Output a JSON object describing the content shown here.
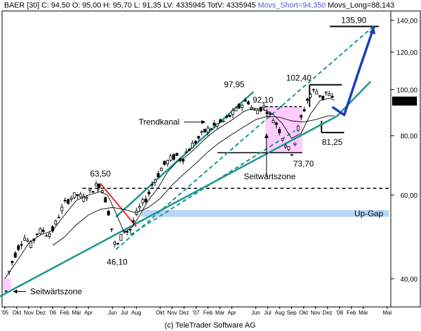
{
  "header": {
    "symbol": "BAER [30]",
    "close": "C: 94,50",
    "open": "O: 95,00",
    "high": "H: 95,70",
    "low": "L: 91,35",
    "volume": "LV: 4335945",
    "total_volume": "TotV: 4335945",
    "movs_short": "Movs_Short=94,350",
    "movs_long": "Movs_Long=88,143",
    "movs_short_color": "#5b5bd6",
    "text_color": "#000000"
  },
  "footer": {
    "copyright": "(c) TeleTrader Software AG"
  },
  "annotations": {
    "trend_channel": "Trendkanal",
    "sideways_zone_mid": "Seitwärtszone",
    "sideways_zone_low": "Seitwärtszone",
    "up_gap": "Up-Gap",
    "last_price": "94,50"
  },
  "chart_data": {
    "type": "candlestick",
    "title": "",
    "y_scale": "log",
    "ylim": [
      35,
      146
    ],
    "y_ticks": [
      {
        "value": 40,
        "label": "40,00"
      },
      {
        "value": 60,
        "label": "60,00"
      },
      {
        "value": 80,
        "label": "80,00"
      },
      {
        "value": 100,
        "label": "100,00"
      },
      {
        "value": 120,
        "label": "120,00"
      },
      {
        "value": 140,
        "label": "140,00"
      }
    ],
    "x_ticks": [
      {
        "m": 0,
        "label": "'05"
      },
      {
        "m": 1,
        "label": "Okt"
      },
      {
        "m": 2,
        "label": "Nov"
      },
      {
        "m": 3,
        "label": "Dez"
      },
      {
        "m": 4,
        "label": "'06"
      },
      {
        "m": 5,
        "label": "Feb"
      },
      {
        "m": 6,
        "label": "Mär"
      },
      {
        "m": 7,
        "label": "Apr"
      },
      {
        "m": 9,
        "label": "Jun"
      },
      {
        "m": 10,
        "label": "Jul"
      },
      {
        "m": 11,
        "label": "Aug"
      },
      {
        "m": 13,
        "label": "Okt"
      },
      {
        "m": 14,
        "label": "Nov"
      },
      {
        "m": 15,
        "label": "Dez"
      },
      {
        "m": 16,
        "label": "'07"
      },
      {
        "m": 17,
        "label": "Feb"
      },
      {
        "m": 18,
        "label": "Mär"
      },
      {
        "m": 19,
        "label": "Apr"
      },
      {
        "m": 21,
        "label": "Jun"
      },
      {
        "m": 22,
        "label": "Jul"
      },
      {
        "m": 23,
        "label": "Aug"
      },
      {
        "m": 24,
        "label": "Sep"
      },
      {
        "m": 25,
        "label": "Okt"
      },
      {
        "m": 26,
        "label": "Nov"
      },
      {
        "m": 27,
        "label": "Dez"
      },
      {
        "m": 28,
        "label": "'08"
      },
      {
        "m": 29,
        "label": "Feb"
      },
      {
        "m": 30,
        "label": "Mär"
      },
      {
        "m": 32,
        "label": "Mai"
      }
    ],
    "price_path": [
      [
        0,
        36
      ],
      [
        0.3,
        41
      ],
      [
        0.7,
        44
      ],
      [
        1.2,
        47
      ],
      [
        1.7,
        49
      ],
      [
        2.2,
        47
      ],
      [
        2.7,
        50
      ],
      [
        3.2,
        50.5
      ],
      [
        3.6,
        49.5
      ],
      [
        4.1,
        51
      ],
      [
        4.6,
        55
      ],
      [
        5.1,
        58
      ],
      [
        5.6,
        59.5
      ],
      [
        6.1,
        60
      ],
      [
        6.6,
        59
      ],
      [
        7.1,
        61
      ],
      [
        7.6,
        62.5
      ],
      [
        8.0,
        63.5
      ],
      [
        8.4,
        59
      ],
      [
        8.7,
        55
      ],
      [
        9.0,
        50
      ],
      [
        9.3,
        46.1
      ],
      [
        9.6,
        48
      ],
      [
        10.0,
        51
      ],
      [
        10.4,
        50
      ],
      [
        10.8,
        53
      ],
      [
        11.2,
        56
      ],
      [
        11.6,
        58
      ],
      [
        12.0,
        60
      ],
      [
        12.4,
        64
      ],
      [
        12.8,
        66
      ],
      [
        13.2,
        69
      ],
      [
        13.6,
        70.5
      ],
      [
        14.0,
        72
      ],
      [
        14.4,
        72.5
      ],
      [
        14.8,
        71
      ],
      [
        15.2,
        74
      ],
      [
        15.6,
        76
      ],
      [
        16.0,
        78
      ],
      [
        16.4,
        80
      ],
      [
        16.8,
        82
      ],
      [
        17.2,
        83
      ],
      [
        17.6,
        84
      ],
      [
        18.0,
        85
      ],
      [
        18.4,
        86
      ],
      [
        18.8,
        88
      ],
      [
        19.2,
        89.5
      ],
      [
        19.6,
        92
      ],
      [
        20.0,
        94
      ],
      [
        20.4,
        94.5
      ],
      [
        20.7,
        91
      ],
      [
        21.0,
        90
      ],
      [
        21.4,
        91.5
      ],
      [
        21.8,
        92.1
      ],
      [
        22.2,
        88
      ],
      [
        22.6,
        86
      ],
      [
        23.0,
        82
      ],
      [
        23.4,
        78
      ],
      [
        23.7,
        75
      ],
      [
        24.0,
        73.7
      ],
      [
        24.3,
        78
      ],
      [
        24.6,
        84
      ],
      [
        25.0,
        90
      ],
      [
        25.3,
        95
      ],
      [
        25.6,
        98
      ],
      [
        26.0,
        100
      ],
      [
        26.3,
        98
      ],
      [
        26.6,
        96
      ],
      [
        26.9,
        99
      ],
      [
        27.2,
        97
      ],
      [
        27.5,
        94.5
      ]
    ],
    "ma_short": [
      [
        0,
        40
      ],
      [
        1,
        43.5
      ],
      [
        2,
        47.5
      ],
      [
        3,
        49.5
      ],
      [
        4,
        50.5
      ],
      [
        5,
        54.5
      ],
      [
        6,
        58.5
      ],
      [
        7,
        60
      ],
      [
        8,
        61
      ],
      [
        8.6,
        60
      ],
      [
        9.3,
        55
      ],
      [
        10,
        50
      ],
      [
        10.7,
        51.5
      ],
      [
        11.4,
        55
      ],
      [
        12,
        58.5
      ],
      [
        12.8,
        62
      ],
      [
        13.6,
        67
      ],
      [
        14.4,
        70.5
      ],
      [
        15.2,
        72.5
      ],
      [
        16,
        75.5
      ],
      [
        16.8,
        79
      ],
      [
        17.6,
        82
      ],
      [
        18.4,
        84.5
      ],
      [
        19.2,
        87
      ],
      [
        20,
        90
      ],
      [
        20.8,
        91.5
      ],
      [
        21.6,
        91
      ],
      [
        22.4,
        89
      ],
      [
        23.2,
        85
      ],
      [
        24,
        79
      ],
      [
        24.8,
        81
      ],
      [
        25.6,
        89
      ],
      [
        26.4,
        95
      ],
      [
        27.2,
        96
      ],
      [
        27.6,
        95
      ]
    ],
    "ma_long": [
      [
        4,
        47
      ],
      [
        5,
        49
      ],
      [
        6,
        52
      ],
      [
        7,
        54.5
      ],
      [
        8,
        56
      ],
      [
        9,
        56.5
      ],
      [
        10,
        56
      ],
      [
        11,
        55
      ],
      [
        12,
        56.5
      ],
      [
        13,
        59
      ],
      [
        14,
        63
      ],
      [
        15,
        66.5
      ],
      [
        16,
        70
      ],
      [
        17,
        74
      ],
      [
        18,
        77.5
      ],
      [
        19,
        80.5
      ],
      [
        20,
        83.5
      ],
      [
        21,
        86.5
      ],
      [
        22,
        88
      ],
      [
        23,
        87.5
      ],
      [
        24,
        86
      ],
      [
        25,
        85.5
      ],
      [
        26,
        86.5
      ],
      [
        27,
        88
      ],
      [
        27.6,
        88.1
      ]
    ],
    "levels": [
      {
        "label": "135,90",
        "value": 135.9
      },
      {
        "label": "102,40",
        "value": 102.4
      },
      {
        "label": "97,95",
        "value": 97.95
      },
      {
        "label": "92,10",
        "value": 92.1
      },
      {
        "label": "81,25",
        "value": 81.25
      },
      {
        "label": "73,70",
        "value": 73.7
      },
      {
        "label": "63,50",
        "value": 63.5
      },
      {
        "label": "46,10",
        "value": 46.1
      }
    ],
    "resistance_dashed": 62.0,
    "up_gap_band": [
      54.0,
      55.8
    ],
    "sideways_box_low": [
      0,
      38,
      0.6,
      40
    ],
    "sideways_box_mid": [
      21.8,
      73.7,
      24.9,
      92.1
    ],
    "channel_lower": [
      [
        -0.6,
        36.5
      ],
      [
        27.8,
        88
      ],
      [
        30.6,
        104
      ]
    ],
    "channel_upper": [
      [
        9.3,
        54
      ],
      [
        20.8,
        99
      ]
    ],
    "channel_upper_dashed": [
      [
        9.3,
        46.1
      ],
      [
        31.0,
        137
      ]
    ],
    "channel_middle_dashed": [
      [
        10.5,
        49.5
      ],
      [
        24.3,
        82
      ]
    ],
    "red_line": [
      [
        8.0,
        63.5
      ],
      [
        11.0,
        51.5
      ]
    ],
    "forecast_path": [
      [
        27.4,
        92
      ],
      [
        28.4,
        88.5
      ],
      [
        29.7,
        111
      ],
      [
        30.9,
        136
      ]
    ],
    "colors": {
      "up_candle": "#000000",
      "channel": "#17968e",
      "forecast": "#1b3cbe",
      "sideways_fill": "#ffccff",
      "up_gap_fill": "#b9d6f5",
      "red_line": "#e42929",
      "ma_short": "#000000",
      "ma_long": "#000000"
    }
  }
}
